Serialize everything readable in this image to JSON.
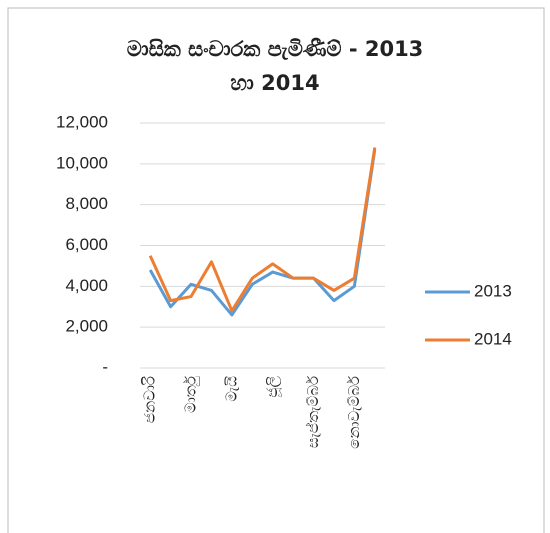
{
  "chart_data": {
    "type": "line",
    "title": [
      "මාසික සංචාරක පැමිණීම් - 2013",
      "හා 2014"
    ],
    "categories": [
      "ජනවාරි",
      null,
      "මාර්තු",
      null,
      "මැයි",
      null,
      "ජූලි",
      null,
      "සැප්තැම්බර්",
      null,
      "නොවැම්බර්",
      null
    ],
    "series": [
      {
        "name": "2013",
        "color": "#5b9bd5",
        "values": [
          4800,
          3000,
          4100,
          3800,
          2600,
          4100,
          4700,
          4400,
          4400,
          3300,
          4000,
          10700
        ]
      },
      {
        "name": "2014",
        "color": "#ed7d31",
        "values": [
          5500,
          3300,
          3500,
          5200,
          2800,
          4400,
          5100,
          4400,
          4400,
          3800,
          4400,
          10800
        ]
      }
    ],
    "ylim": [
      0,
      12000
    ],
    "yticks": [
      {
        "value": 0,
        "label": "-"
      },
      {
        "value": 2000,
        "label": "2,000"
      },
      {
        "value": 4000,
        "label": "4,000"
      },
      {
        "value": 6000,
        "label": "6,000"
      },
      {
        "value": 8000,
        "label": "8,000"
      },
      {
        "value": 10000,
        "label": "10,000"
      },
      {
        "value": 12000,
        "label": "12,000"
      }
    ],
    "grid": true,
    "legend": "right"
  }
}
